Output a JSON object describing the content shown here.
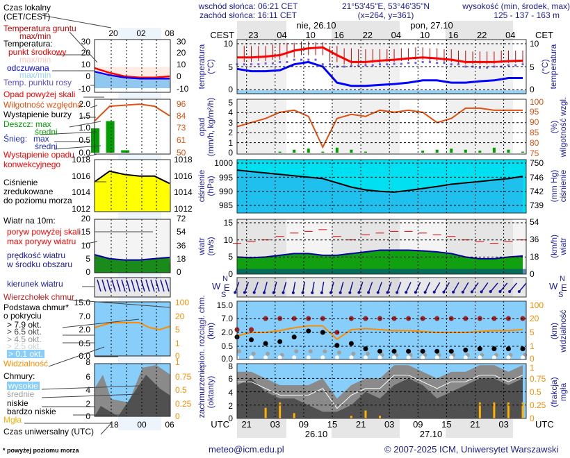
{
  "header": {
    "sunrise": "wschód słońca: 06:21 CET",
    "sunset": "zachód słońca: 16:11 CET",
    "coords": "21°53'45\"E, 53°46'35\"N",
    "grid": "(x=264,  y=361)",
    "elevation_title": "wysokość (min, środek, max)",
    "elevation_values": "125 - 137 - 163 m"
  },
  "footer": {
    "email": "meteo@icm.edu.pl",
    "copyright": "© 2007-2025 ICM, Uniwersytet Warszawski",
    "note": "* powyżej poziomu morza"
  },
  "legend": {
    "local_time": "Czas lokalny",
    "local_time2": "(CET/CEST)",
    "ground_temp": "Temperatura gruntu",
    "ground_temp2": "max/min",
    "temperature": "Temperatura:",
    "mid": "punkt środkowy",
    "mid_maxmin": "max/min",
    "felt": "odczuwana",
    "felt_maxmin": "max/min",
    "dew": "Temp. punktu rosy",
    "precip_over": "Opad powyżej skali",
    "humidity": "Wilgotność względna",
    "storm": "Wystąpienie burzy",
    "rain_max": "Deszcz: max",
    "rain_mean": "średni",
    "snow": "Śnieg:",
    "snow_max": "max",
    "snow_mean": "średni",
    "conv1": "Wystąpienie opadu",
    "conv2": "konwekcyjnego",
    "press1": "Ciśnienie",
    "press2": "zredukowane",
    "press3": "do poziomu morza",
    "wind": "Wiatr na 10m:",
    "gust_over": "poryw powyżej skali",
    "gust_max": "max porywy wiatru",
    "wind_speed1": "prędkość wiatru",
    "wind_speed2": "w środku obszaru",
    "wind_dir": "kierunek wiatru",
    "cloud_top": "Wierzchołek chmur",
    "cloud_base1": "Podstawa chmur*",
    "cloud_base2": "o pokryciu",
    "okt79": "> 7.9 okt.",
    "okt65": "> 6.5 okt.",
    "okt45": "> 4.5 okt.",
    "okt25": "> 2.5 okt.",
    "okt01": "> 0.1 okt.",
    "visibility": "Widzialność",
    "clouds": "Chmury:",
    "high": "wysokie",
    "middle": "średnie",
    "low": "niskie",
    "very_low": "bardzo niskie",
    "mist": "Mgła",
    "utc": "Czas uniwersalny (UTC)"
  },
  "mini_axes": {
    "local_ticks": [
      "20",
      "02",
      "08"
    ],
    "utc_ticks": [
      "18",
      "00",
      "06"
    ],
    "temp": [
      "30",
      "20",
      "10",
      "0",
      "-10"
    ],
    "precip": [
      "2.0",
      "1.5",
      "1.0",
      "0.5",
      "0.0"
    ],
    "humidity": [
      "96",
      "84",
      "73",
      "61",
      "50"
    ],
    "pressure": [
      "1018",
      "1016",
      "1014",
      "1012"
    ],
    "wind": [
      "20",
      "15",
      "10",
      "5",
      "0"
    ],
    "wind_kmh": [
      "72",
      "54",
      "36",
      "18",
      "0"
    ],
    "cloud_h": [
      "15.0",
      "7.0",
      "2.0",
      "0.5",
      "0.0"
    ],
    "vis": [
      "100",
      "20",
      "5",
      "1",
      "0"
    ],
    "cover": [
      "8",
      "6",
      "4",
      "2",
      "0"
    ],
    "mist": [
      "1",
      "0.75",
      "0.5",
      "0.25",
      "0"
    ]
  },
  "main_axes": {
    "cest": "CEST",
    "cet": "CET",
    "utc": "UTC",
    "local_ticks": [
      "23",
      "04",
      "10",
      "16",
      "22",
      "04",
      "10",
      "16",
      "22",
      "04"
    ],
    "local_dates": [
      "nie, 26.10",
      "pon, 27.10"
    ],
    "utc_ticks": [
      "21",
      "03",
      "09",
      "15",
      "21",
      "03",
      "09",
      "15",
      "21",
      "03"
    ],
    "utc_dates": [
      "26.10",
      "27.10"
    ],
    "temp_label": "temperatura",
    "temp_unit": "(°C)",
    "temp_ticks": [
      "10",
      "5",
      "0"
    ],
    "precip_label": "opad",
    "precip_unit": "(mm/h, kg/m²/h)",
    "precip_ticks": [
      "5",
      "4",
      "3",
      "2",
      "1",
      "0"
    ],
    "hum_label": "wilgotność wzgl.",
    "hum_unit": "(%)",
    "hum_ticks": [
      "100",
      "95",
      "90",
      "85",
      "80",
      "75"
    ],
    "press_label": "ciśnienie",
    "press_unit": "(hPa)",
    "press_unit2": "(mm Hg)",
    "press_ticks": [
      "1000",
      "995",
      "990",
      "985"
    ],
    "press_mm_ticks": [
      "750",
      "746",
      "742",
      "739"
    ],
    "wind_label": "wiatr",
    "wind_unit": "(m/s)",
    "wind_unit2": "(km/h)",
    "wind_ticks": [
      "15",
      "10",
      "5",
      "0"
    ],
    "wind_kmh_ticks": [
      "54",
      "36",
      "18",
      "0"
    ],
    "compass": [
      "N",
      "W",
      "E",
      "S"
    ],
    "ch_label": "pion. rozciągł. chm.",
    "ch_unit": "(km)",
    "ch_ticks": [
      "15.0",
      "7.0",
      "2.0",
      "0.5",
      "0.0"
    ],
    "vis_label": "widzialność",
    "vis_unit": "(km)",
    "vis_ticks": [
      "100",
      "20",
      "5",
      "1",
      "0"
    ],
    "cov_label": "zachmurzenie",
    "cov_unit": "(oktanty)",
    "cov_ticks": [
      "8",
      "6",
      "4",
      "2",
      "0"
    ],
    "mist_label": "mgła",
    "mist_unit": "(frakcja)",
    "mist_ticks": [
      "1",
      "0.75",
      "0.5",
      "0.25",
      "0"
    ]
  },
  "colors": {
    "temp": "#ff0000",
    "felt": "#0000ff",
    "dew": "#7060e0",
    "humidity": "#e05010",
    "rain": "#00a000",
    "pressure": "#ffff00",
    "wind": "#008000",
    "visibility": "#ff8c00",
    "mist": "#ffb000",
    "label": "#1a1a9a"
  },
  "chart_data": {
    "type": "line",
    "time_step_hours": 3,
    "times": [
      "25.10 19:00 UTC",
      "25.10 22:00 UTC",
      "26.10 01:00 UTC",
      "26.10 04:00 UTC",
      "26.10 07:00 UTC",
      "26.10 10:00 UTC",
      "26.10 13:00 UTC",
      "26.10 16:00 UTC",
      "26.10 19:00 UTC",
      "26.10 22:00 UTC",
      "27.10 01:00 UTC",
      "27.10 04:00 UTC",
      "27.10 07:00 UTC",
      "27.10 10:00 UTC",
      "27.10 13:00 UTC",
      "27.10 16:00 UTC",
      "27.10 19:00 UTC",
      "27.10 22:00 UTC",
      "28.10 01:00 UTC",
      "28.10 04:00 UTC",
      "28.10 07:00 UTC"
    ],
    "temperature_c": [
      7.0,
      7.0,
      7.2,
      7.5,
      8.5,
      9.0,
      9.2,
      7.5,
      6.0,
      6.0,
      6.3,
      6.5,
      6.8,
      7.0,
      6.8,
      6.5,
      6.0,
      6.0,
      6.0,
      6.2,
      6.3
    ],
    "felt_temperature_c": [
      4.5,
      4.0,
      4.0,
      4.2,
      5.5,
      6.0,
      5.0,
      1.5,
      0.8,
      0.8,
      1.0,
      1.2,
      1.5,
      2.0,
      2.0,
      1.5,
      1.5,
      1.8,
      2.0,
      2.5,
      2.5
    ],
    "dew_point_c": [
      5.5,
      5.5,
      5.7,
      6.0,
      6.5,
      6.5,
      5.5,
      5.0,
      5.2,
      5.3,
      5.5,
      5.6,
      5.8,
      6.0,
      5.8,
      5.5,
      5.0,
      4.8,
      5.0,
      5.3,
      5.5
    ],
    "ground_temp_max_c": [
      9.5,
      9.5,
      9.5,
      9.8,
      10.2,
      10.5,
      10.3,
      9.5,
      9.0,
      8.8,
      8.8,
      8.8,
      9.0,
      9.2,
      9.0,
      8.8,
      8.5,
      8.3,
      8.3,
      8.5,
      8.5
    ],
    "ground_temp_min_c": [
      6.0,
      6.0,
      6.2,
      6.5,
      7.0,
      7.5,
      7.5,
      6.0,
      5.5,
      5.5,
      5.8,
      6.0,
      6.2,
      6.5,
      6.2,
      6.0,
      5.5,
      5.5,
      5.5,
      5.8,
      5.8
    ],
    "humidity_pct": [
      88,
      90,
      92,
      95,
      96,
      93,
      78,
      92,
      94,
      93,
      96,
      95,
      96,
      95,
      90,
      92,
      97,
      97,
      96,
      96,
      96
    ],
    "rain_mm_h": [
      0,
      0,
      0,
      0.1,
      0.3,
      0.4,
      0.1,
      0.5,
      0.3,
      0.1,
      0,
      0,
      0,
      0.2,
      0.3,
      0.4,
      0.3,
      0.2,
      0.5,
      0.3,
      0.1
    ],
    "pressure_hpa": [
      997.5,
      997,
      996.5,
      996,
      995.5,
      995,
      994.5,
      993,
      991.5,
      990.5,
      990,
      989.7,
      990.3,
      991,
      991.7,
      992.5,
      993,
      993.5,
      994,
      994.5,
      995.3
    ],
    "wind_ms": [
      5,
      4.8,
      5,
      5.5,
      6,
      6,
      5.5,
      5.5,
      6,
      6.5,
      7,
      7,
      7,
      6.8,
      6.5,
      6,
      5,
      4.5,
      4.5,
      5,
      5.3
    ],
    "gust_ms": [
      9,
      9.5,
      10,
      11,
      12,
      12.5,
      13,
      11,
      10,
      11.5,
      12,
      12.5,
      12.5,
      12,
      11.5,
      11,
      10,
      9.5,
      9,
      9.5,
      10
    ],
    "wind_dir_deg": [
      340,
      340,
      345,
      345,
      350,
      350,
      350,
      345,
      345,
      340,
      340,
      340,
      335,
      335,
      330,
      330,
      330,
      325,
      320,
      320,
      320
    ],
    "cloud_top_km": [
      3,
      3,
      7,
      7,
      7,
      7,
      7,
      2,
      7,
      7,
      7,
      7,
      7,
      7,
      7,
      7,
      7,
      7,
      7,
      7,
      7
    ],
    "base_overcast_km": [
      1.5,
      1.2,
      0.8,
      1,
      1.5,
      2.5,
      2,
      0.6,
      0.8,
      0.4,
      0.3,
      0.3,
      0.3,
      0.3,
      0.3,
      0.3,
      0.35,
      0.4,
      0.4,
      0.4,
      0.4
    ],
    "base_scattered_km": [
      0.3,
      0.2,
      0.2,
      0.15,
      0.3,
      0.3,
      0.3,
      0.25,
      0.2,
      0.2,
      0.15,
      0.15,
      0.15,
      0.15,
      0.15,
      0.15,
      0.15,
      0.15,
      0.15,
      0.15,
      0.15
    ],
    "visibility_km": [
      4,
      5,
      5,
      7,
      10,
      12,
      12,
      3,
      8,
      9,
      8,
      7,
      7,
      6,
      5,
      5,
      5,
      6,
      7,
      7,
      8
    ],
    "total_cover_oktas": [
      7,
      7,
      6,
      5,
      5,
      5,
      6,
      3,
      5,
      6,
      6,
      8,
      8,
      7,
      6,
      7,
      7,
      8,
      8,
      7,
      8
    ],
    "low_cover_oktas": [
      5,
      6,
      4,
      3,
      3,
      2,
      1,
      1,
      2,
      4,
      3,
      5,
      6,
      5,
      3,
      4,
      5,
      6,
      6,
      5,
      6
    ],
    "mist_fraction": [
      0,
      0,
      0.2,
      0.3,
      0.1,
      0,
      0,
      0,
      0.05,
      0.15,
      0.05,
      0,
      0,
      0,
      0,
      0,
      0,
      0.3,
      0.3,
      0.3,
      0.3
    ],
    "mini": {
      "start_time": "25.10 15:00 UTC",
      "temperature_c": [
        7,
        3,
        0,
        -1,
        -1,
        0
      ],
      "felt_temperature_c": [
        4,
        1,
        -1,
        -2,
        -2,
        -2
      ],
      "humidity_pct": [
        80,
        94,
        95,
        96,
        94,
        85
      ],
      "pressure_hpa": [
        1015.3,
        1016.6,
        1016.2,
        1016,
        1016,
        1015.1
      ],
      "wind_ms": [
        6.5,
        5,
        4.5,
        4.5,
        5,
        5.5
      ],
      "rain_mm_h": [
        1.0,
        1.3,
        0.1,
        0,
        0,
        0
      ]
    }
  }
}
